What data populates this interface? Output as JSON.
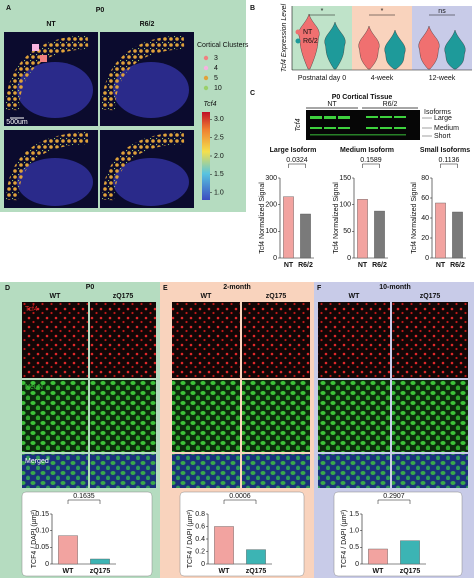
{
  "panels": {
    "A": {
      "label": "A",
      "title": "P0",
      "columns": [
        "NT",
        "R6/2"
      ],
      "legend_title": "Cortical Clusters",
      "clusters": [
        "3",
        "4",
        "5",
        "10"
      ],
      "scale_title": "Tcf4",
      "clim": [
        0.8,
        3.2
      ],
      "scale_ticks": [
        {
          "value": 3,
          "label": "3.0"
        },
        2.5,
        {
          "value": 2,
          "label": "2.0"
        },
        1.5,
        {
          "value": 1,
          "label": "1.0"
        }
      ],
      "scale_bar": "500um"
    },
    "B": {
      "label": "B",
      "ylabel": "Tcf4 Expression Level",
      "legend": [
        "NT",
        "R6/2"
      ],
      "groups": [
        "Postnatal day 0",
        "4-week",
        "12-week"
      ],
      "significance": [
        "*",
        "*",
        "ns"
      ]
    },
    "C": {
      "label": "C",
      "blot_title": "P0 Cortical Tissue",
      "lanes": [
        "NT",
        "R6/2"
      ],
      "blot_label": "Tcf4",
      "isoforms_title": "Isoforms",
      "isoforms": [
        "Large",
        "Medium",
        "Short"
      ]
    },
    "D": {
      "label": "D",
      "title": "P0",
      "columns": [
        "WT",
        "zQ175"
      ],
      "rows": [
        "Tcf4",
        "NeuN",
        "Merged"
      ]
    },
    "E": {
      "label": "E",
      "title": "2-month",
      "columns": [
        "WT",
        "zQ175"
      ]
    },
    "F": {
      "label": "F",
      "title": "10-month",
      "columns": [
        "WT",
        "zQ175"
      ]
    }
  },
  "chart_data": [
    {
      "type": "bar",
      "title": "Large Isoform",
      "annotation": "0.0324",
      "ylabel": "Tcf4 Normalized Signal",
      "categories": [
        "NT",
        "R6/2"
      ],
      "values": [
        230,
        165
      ],
      "colors": [
        "#f2a3a0",
        "#7a7a7a"
      ],
      "ylim": [
        0,
        300
      ],
      "yticks": [
        0,
        100,
        200,
        300
      ]
    },
    {
      "type": "bar",
      "title": "Medium Isoform",
      "annotation": "0.1589",
      "ylabel": "Tcf4 Normalized Signal",
      "categories": [
        "NT",
        "R6/2"
      ],
      "values": [
        110,
        88
      ],
      "colors": [
        "#f2a3a0",
        "#7a7a7a"
      ],
      "ylim": [
        0,
        150
      ],
      "yticks": [
        0,
        50,
        100,
        150
      ]
    },
    {
      "type": "bar",
      "title": "Small Isoforms",
      "annotation": "0.1136",
      "ylabel": "Tcf4 Normalized Signal",
      "categories": [
        "NT",
        "R6/2"
      ],
      "values": [
        55,
        46
      ],
      "colors": [
        "#f2a3a0",
        "#7a7a7a"
      ],
      "ylim": [
        0,
        80
      ],
      "yticks": [
        0,
        20,
        40,
        60,
        80
      ]
    },
    {
      "type": "bar",
      "annotation": "0.1635",
      "ylabel": "TCF4 / DAPI (µm²)",
      "categories": [
        "WT",
        "zQ175"
      ],
      "values": [
        0.085,
        0.015
      ],
      "colors": [
        "#f2a3a0",
        "#3cb4b4"
      ],
      "ylim": [
        0,
        0.15
      ],
      "yticks": [
        0,
        0.05,
        {
          "value": 0.1,
          "label": "0.10"
        },
        0.15
      ]
    },
    {
      "type": "bar",
      "annotation": "0.0006",
      "ylabel": "TCF4 / DAPI (µm²)",
      "categories": [
        "WT",
        "zQ175"
      ],
      "values": [
        0.6,
        0.23
      ],
      "colors": [
        "#f2a3a0",
        "#3cb4b4"
      ],
      "ylim": [
        0,
        0.8
      ],
      "yticks": [
        0,
        0.2,
        0.4,
        0.6,
        0.8
      ]
    },
    {
      "type": "bar",
      "annotation": "0.2907",
      "ylabel": "TCF4 / DAPI (µm²)",
      "categories": [
        "WT",
        "zQ175"
      ],
      "values": [
        0.45,
        0.7
      ],
      "colors": [
        "#f2a3a0",
        "#3cb4b4"
      ],
      "ylim": [
        0,
        1.5
      ],
      "yticks": [
        0,
        0.5,
        {
          "value": 1,
          "label": "1.0"
        },
        1.5
      ]
    }
  ]
}
